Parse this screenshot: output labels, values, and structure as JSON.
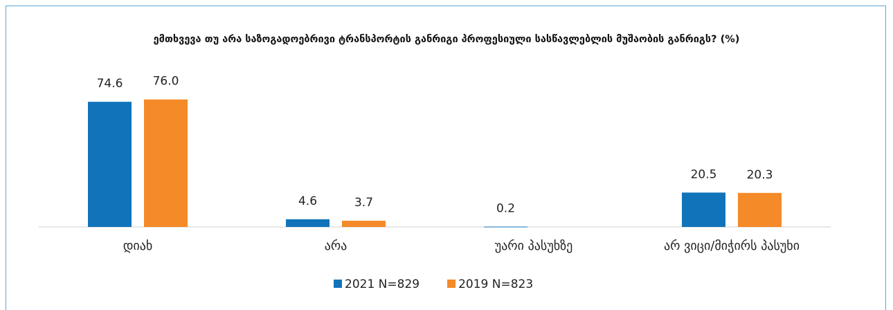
{
  "chart_data": {
    "type": "bar",
    "title": "ემთხვევა თუ არა საზოგადოებრივი ტრანსპორტის განრიგი პროფესიული სასწავლებლის მუშაობის განრიგს? (%)",
    "categories": [
      "დიახ",
      "არა",
      "უარი პასუხზე",
      "არ ვიცი/მიჭირს პასუხი"
    ],
    "series": [
      {
        "name": "2021 N=829",
        "color": "#1174bb",
        "values": [
          74.6,
          4.6,
          0.2,
          20.5
        ],
        "value_labels": [
          "74.6",
          "4.6",
          "0.2",
          "20.5"
        ]
      },
      {
        "name": "2019 N=823",
        "color": "#f48a28",
        "values": [
          76.0,
          3.7,
          null,
          20.3
        ],
        "value_labels": [
          "76.0",
          "3.7",
          null,
          "20.3"
        ]
      }
    ],
    "ylim": [
      0,
      80
    ],
    "legend": "bottom"
  }
}
